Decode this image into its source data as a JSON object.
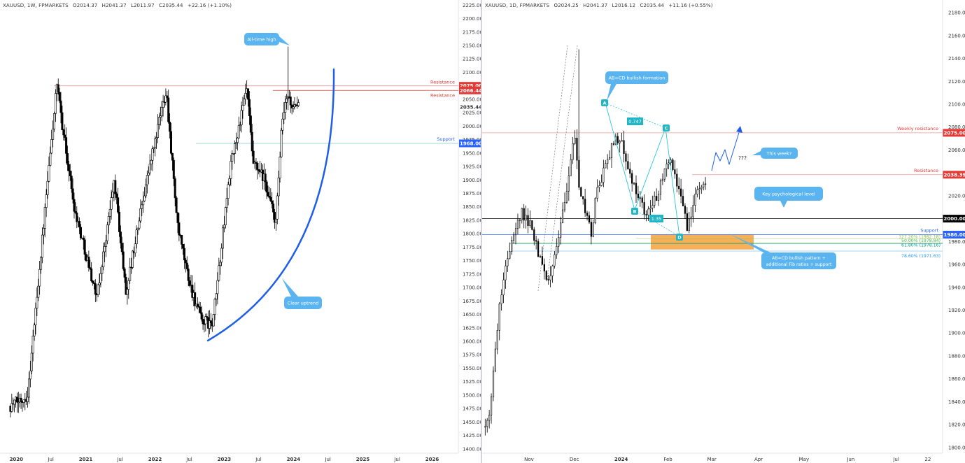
{
  "left_panel": {
    "header": {
      "symbol": "XAUUSD, 1W, FPMARKETS",
      "open": "O2014.37",
      "high": "H2041.37",
      "low": "L2011.97",
      "close": "C2035.44",
      "change": "+22.16 (+1.10%)"
    }
  },
  "right_panel": {
    "header": {
      "symbol": "XAUUSD, 1D, FPMARKETS",
      "open": "O2024.25",
      "high": "H2041.37",
      "low": "L2016.12",
      "close": "C2035.44",
      "change": "+11.16 (+0.55%)"
    }
  },
  "colors": {
    "bull": "#ffffff",
    "bear": "#000000",
    "resistance": "#e53935",
    "support": "#2962ff",
    "callout": "#5ab4f0",
    "label_teal": "#22b5c3",
    "zone": "#f7a23b",
    "uptrend": "#1f5ee8"
  },
  "chart_data": [
    {
      "type": "candlestick",
      "timeframe": "1W",
      "x_tick_labels": [
        "2020",
        "Jul",
        "2021",
        "Jul",
        "2022",
        "Jul",
        "2023",
        "Jul",
        "2024",
        "Jul",
        "2025",
        "Jul",
        "2026"
      ],
      "y_ticks": [
        1400,
        1425,
        1450,
        1475,
        1500,
        1525,
        1550,
        1575,
        1600,
        1625,
        1650,
        1675,
        1700,
        1725,
        1750,
        1775,
        1800,
        1825,
        1850,
        1875,
        1900,
        1925,
        1950,
        1975,
        2000,
        2025,
        2050,
        2075,
        2100,
        2125,
        2150,
        2175,
        2200,
        2225
      ],
      "ylim": [
        1392,
        2228
      ],
      "price_labels": [
        {
          "value": 2075.0,
          "text": "2075.00",
          "color": "#e53935"
        },
        {
          "value": 2066.44,
          "text": "2066.44",
          "color": "#e53935"
        },
        {
          "value": 2035.44,
          "text": "2035.44",
          "color": "none"
        },
        {
          "value": 1968.0,
          "text": "1968.00",
          "color": "#2962ff"
        }
      ],
      "levels": [
        {
          "name": "Resistance",
          "value": 2075.0,
          "color": "#e53935"
        },
        {
          "name": "Resistance",
          "value": 2066.44,
          "color": "#e53935"
        },
        {
          "name": "Support",
          "value": 1968.0,
          "color": "#2962ff"
        }
      ],
      "annotations": [
        {
          "text": "All-time high",
          "kind": "callout"
        },
        {
          "text": "Clear uptrend",
          "kind": "callout"
        }
      ],
      "anchors": [
        {
          "date": "2019-12",
          "price": 1480
        },
        {
          "date": "2020-03",
          "price": 1500
        },
        {
          "date": "2020-08",
          "price": 2075
        },
        {
          "date": "2020-11",
          "price": 1850
        },
        {
          "date": "2021-03",
          "price": 1680
        },
        {
          "date": "2021-06",
          "price": 1900
        },
        {
          "date": "2021-08",
          "price": 1690
        },
        {
          "date": "2021-11",
          "price": 1870
        },
        {
          "date": "2022-03",
          "price": 2070
        },
        {
          "date": "2022-05",
          "price": 1810
        },
        {
          "date": "2022-07",
          "price": 1710
        },
        {
          "date": "2022-09",
          "price": 1640
        },
        {
          "date": "2022-11",
          "price": 1630
        },
        {
          "date": "2023-02",
          "price": 1920
        },
        {
          "date": "2023-05",
          "price": 2070
        },
        {
          "date": "2023-06",
          "price": 1930
        },
        {
          "date": "2023-08",
          "price": 1900
        },
        {
          "date": "2023-10",
          "price": 1820
        },
        {
          "date": "2023-11",
          "price": 2000
        },
        {
          "date": "2023-12",
          "price": 2060
        },
        {
          "date": "2024-01",
          "price": 2030
        },
        {
          "date": "2024-02",
          "price": 2035
        }
      ]
    },
    {
      "type": "candlestick",
      "timeframe": "1D",
      "x_tick_labels": [
        "Nov",
        "Dec",
        "2024",
        "Feb",
        "Mar",
        "Apr",
        "May",
        "Jun",
        "Jul",
        "22"
      ],
      "y_ticks": [
        1800,
        1820,
        1840,
        1860,
        1880,
        1900,
        1920,
        1940,
        1960,
        1980,
        2000,
        2020,
        2040,
        2060,
        2080,
        2100,
        2120,
        2140,
        2160,
        2180
      ],
      "ylim": [
        1795,
        2188
      ],
      "price_labels": [
        {
          "value": 2075.0,
          "text": "2075.00",
          "color": "#e53935"
        },
        {
          "value": 2038.39,
          "text": "2038.39",
          "color": "#e53935"
        },
        {
          "value": 2000.0,
          "text": "2000.00",
          "color": "#000000"
        },
        {
          "value": 1986.0,
          "text": "1986.00",
          "color": "#2962ff"
        }
      ],
      "levels": [
        {
          "name": "Weekly resistance",
          "value": 2075.0,
          "color": "#e53935"
        },
        {
          "name": "Resistance",
          "value": 2038.39,
          "color": "#e53935"
        },
        {
          "name": "",
          "value": 2000.0,
          "color": "#000000"
        },
        {
          "name": "Support",
          "value": 1986.0,
          "color": "#2962ff"
        }
      ],
      "fib_labels": [
        {
          "text": "127.20% (1982.18)",
          "value": 1982.18,
          "color": "#8bc34a"
        },
        {
          "text": "50.00% (1978.84)",
          "value": 1978.84,
          "color": "#4caf50"
        },
        {
          "text": "61.80% (1978.16)",
          "value": 1978.16,
          "color": "#009688"
        },
        {
          "text": "78.60% (1971.63)",
          "value": 1971.63,
          "color": "#2196f3"
        }
      ],
      "zone": {
        "from": 1973,
        "to": 1986
      },
      "abcd": [
        {
          "label": "A",
          "date": "2023-12-04",
          "price": 2088
        },
        {
          "label": "B",
          "date": "2023-12-13",
          "price": 1973
        },
        {
          "label": "C",
          "date": "2024-01-02",
          "price": 2078
        },
        {
          "label": "D",
          "date": "2024-02-14",
          "price": 1984
        }
      ],
      "ratio_labels": [
        {
          "text": "0.747"
        },
        {
          "text": "1.35"
        }
      ],
      "annotations": [
        {
          "text": "AB=CD bullish formation",
          "kind": "callout"
        },
        {
          "text": "This week?",
          "kind": "callout"
        },
        {
          "text": "???",
          "kind": "text"
        },
        {
          "text": "Key psychological level",
          "kind": "callout"
        },
        {
          "text": "AB=CD bullish pattern + additional Fib ratios + support",
          "kind": "callout"
        }
      ],
      "anchors": [
        {
          "date": "2023-10-03",
          "price": 1818
        },
        {
          "date": "2023-10-06",
          "price": 1832
        },
        {
          "date": "2023-10-13",
          "price": 1930
        },
        {
          "date": "2023-10-20",
          "price": 1980
        },
        {
          "date": "2023-10-27",
          "price": 2005
        },
        {
          "date": "2023-11-03",
          "price": 1992
        },
        {
          "date": "2023-11-13",
          "price": 1940
        },
        {
          "date": "2023-11-20",
          "price": 1978
        },
        {
          "date": "2023-11-28",
          "price": 2042
        },
        {
          "date": "2023-12-01",
          "price": 2072
        },
        {
          "date": "2023-12-04",
          "price": 2030
        },
        {
          "date": "2023-12-13",
          "price": 1983
        },
        {
          "date": "2023-12-15",
          "price": 2020
        },
        {
          "date": "2023-12-28",
          "price": 2070
        },
        {
          "date": "2024-01-02",
          "price": 2065
        },
        {
          "date": "2024-01-05",
          "price": 2045
        },
        {
          "date": "2024-01-17",
          "price": 2005
        },
        {
          "date": "2024-01-25",
          "price": 2020
        },
        {
          "date": "2024-02-01",
          "price": 2055
        },
        {
          "date": "2024-02-06",
          "price": 2035
        },
        {
          "date": "2024-02-14",
          "price": 1992
        },
        {
          "date": "2024-02-20",
          "price": 2025
        },
        {
          "date": "2024-02-26",
          "price": 2035
        }
      ]
    }
  ]
}
